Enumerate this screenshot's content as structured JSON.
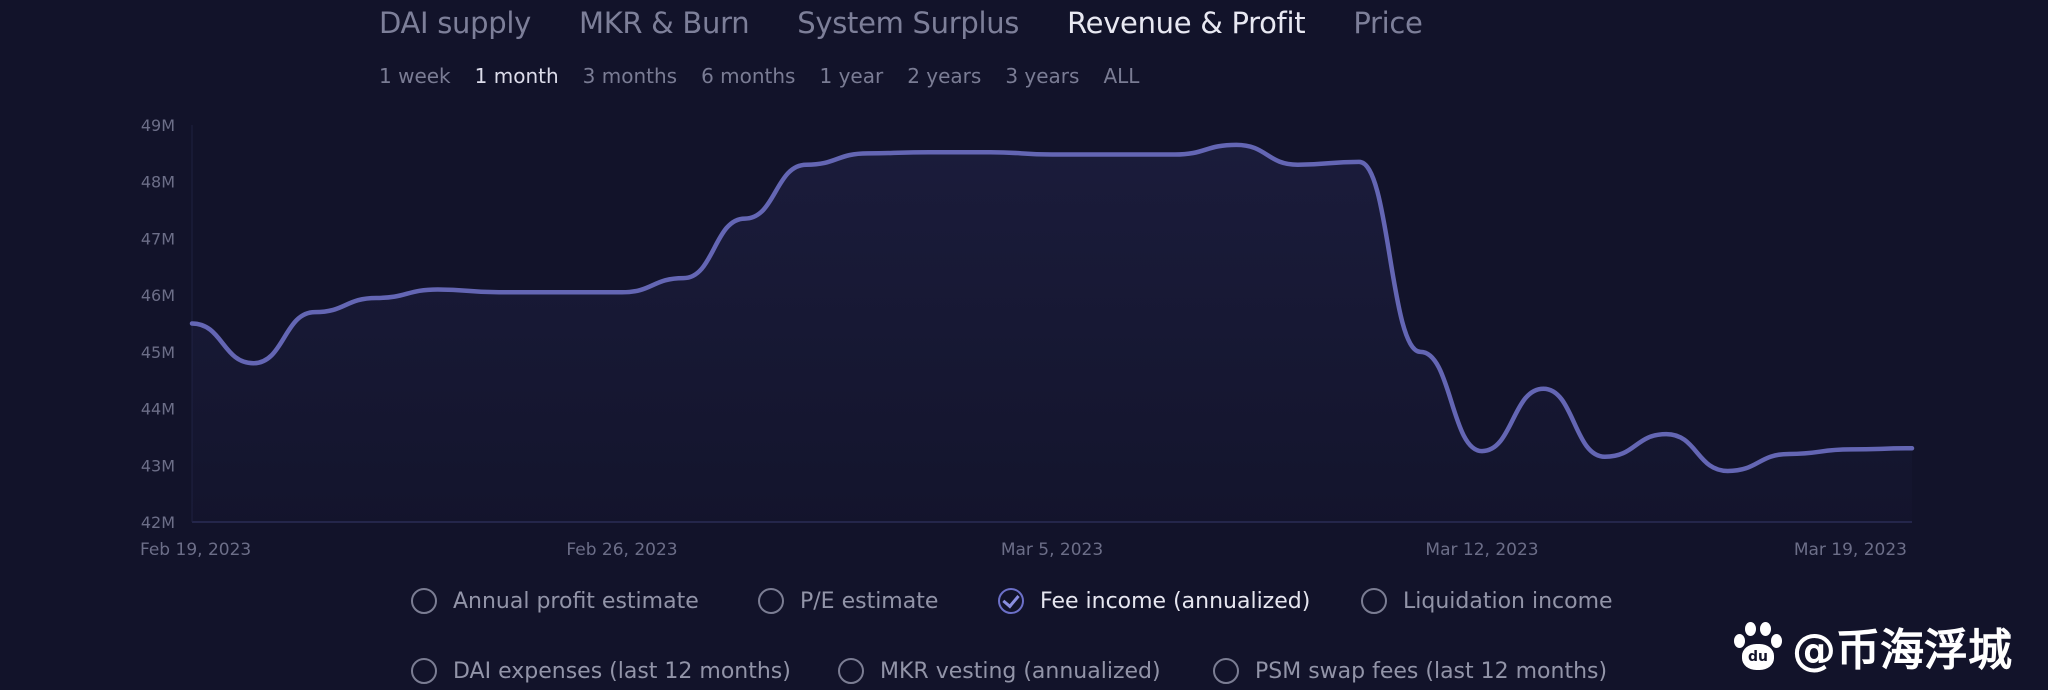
{
  "tabs": [
    "DAI supply",
    "MKR & Burn",
    "System Surplus",
    "Revenue & Profit",
    "Price"
  ],
  "active_tab": "Revenue & Profit",
  "ranges": [
    "1 week",
    "1 month",
    "3 months",
    "6 months",
    "1 year",
    "2 years",
    "3 years",
    "ALL"
  ],
  "active_range": "1 month",
  "colors": {
    "line": "#6466b4",
    "background": "#12132a",
    "axis_text": "#6c6e88"
  },
  "chart_data": {
    "type": "line",
    "title": "",
    "xlabel": "",
    "ylabel": "",
    "ylim": [
      42,
      49
    ],
    "y_unit": "M",
    "y_ticks": [
      "42M",
      "43M",
      "44M",
      "45M",
      "46M",
      "47M",
      "48M",
      "49M"
    ],
    "x_ticks": [
      "Feb 19, 2023",
      "Feb 26, 2023",
      "Mar 5, 2023",
      "Mar 12, 2023",
      "Mar 19, 2023"
    ],
    "grid": false,
    "series": [
      {
        "name": "Fee income (annualized)",
        "x": [
          "2023-02-19",
          "2023-02-20",
          "2023-02-21",
          "2023-02-22",
          "2023-02-23",
          "2023-02-24",
          "2023-02-25",
          "2023-02-26",
          "2023-02-27",
          "2023-02-28",
          "2023-03-01",
          "2023-03-02",
          "2023-03-03",
          "2023-03-04",
          "2023-03-05",
          "2023-03-06",
          "2023-03-07",
          "2023-03-08",
          "2023-03-09",
          "2023-03-10",
          "2023-03-11",
          "2023-03-12",
          "2023-03-13",
          "2023-03-14",
          "2023-03-15",
          "2023-03-16",
          "2023-03-17",
          "2023-03-18",
          "2023-03-19"
        ],
        "values": [
          45.5,
          44.8,
          45.7,
          45.95,
          46.1,
          46.05,
          46.05,
          46.05,
          46.3,
          47.35,
          48.3,
          48.5,
          48.52,
          48.52,
          48.48,
          48.48,
          48.48,
          48.65,
          48.3,
          48.35,
          45.0,
          43.25,
          44.35,
          43.15,
          43.55,
          42.9,
          43.2,
          43.28,
          43.3
        ]
      }
    ]
  },
  "legend": [
    {
      "label": "Annual profit estimate",
      "checked": false
    },
    {
      "label": "P/E estimate",
      "checked": false
    },
    {
      "label": "Fee income (annualized)",
      "checked": true
    },
    {
      "label": "Liquidation income",
      "checked": false
    },
    {
      "label": "DAI expenses (last 12 months)",
      "checked": false
    },
    {
      "label": "MKR vesting (annualized)",
      "checked": false
    },
    {
      "label": "PSM swap fees (last 12 months)",
      "checked": false
    }
  ],
  "watermark": {
    "text": "@币海浮城",
    "logo_text": "du"
  }
}
